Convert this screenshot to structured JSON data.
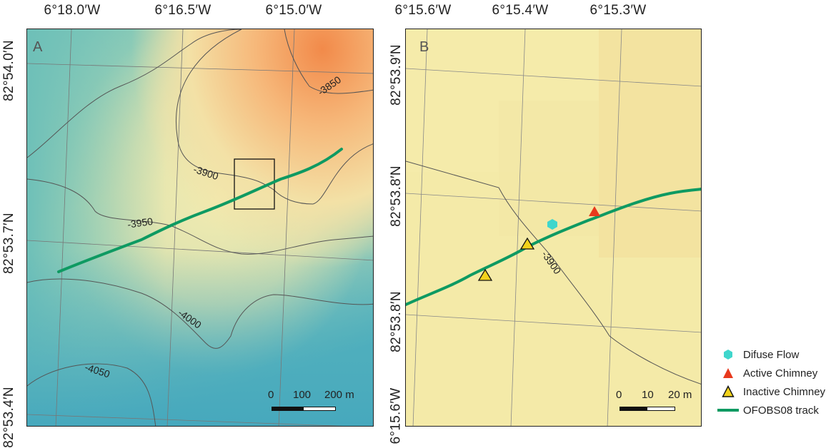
{
  "panel_a": {
    "letter": "A",
    "top_ticks": [
      "6°18.0′W",
      "6°16.5′W",
      "6°15.0′W"
    ],
    "left_ticks": [
      "82°54.0′N",
      "82°53.7′N",
      "82°53.4′N"
    ],
    "contours": [
      "-3850",
      "-3900",
      "-3950",
      "-4000",
      "-4050"
    ],
    "scale": {
      "labels": [
        "0",
        "100",
        "200 m"
      ]
    }
  },
  "panel_b": {
    "letter": "B",
    "top_ticks": [
      "6°15.6′W",
      "6°15.4′W",
      "6°15.3′W"
    ],
    "left_ticks": [
      "82°53.9′N",
      "82°53.8′N",
      "82°53.8′N",
      "6°15.6′W"
    ],
    "contours": [
      "-3900"
    ],
    "scale": {
      "labels": [
        "0",
        "10",
        "20 m"
      ]
    }
  },
  "legend": {
    "items": [
      {
        "label": "Difuse Flow",
        "icon": "hexagon-icon",
        "color": "#3fd6cc"
      },
      {
        "label": "Active Chimney",
        "icon": "triangle-icon",
        "color": "#e8391d"
      },
      {
        "label": "Inactive Chimney",
        "icon": "triangle-outline-icon",
        "color": "#f2d21b"
      },
      {
        "label": "OFOBS08 track",
        "icon": "line-icon",
        "color": "#0e9a62"
      }
    ]
  }
}
